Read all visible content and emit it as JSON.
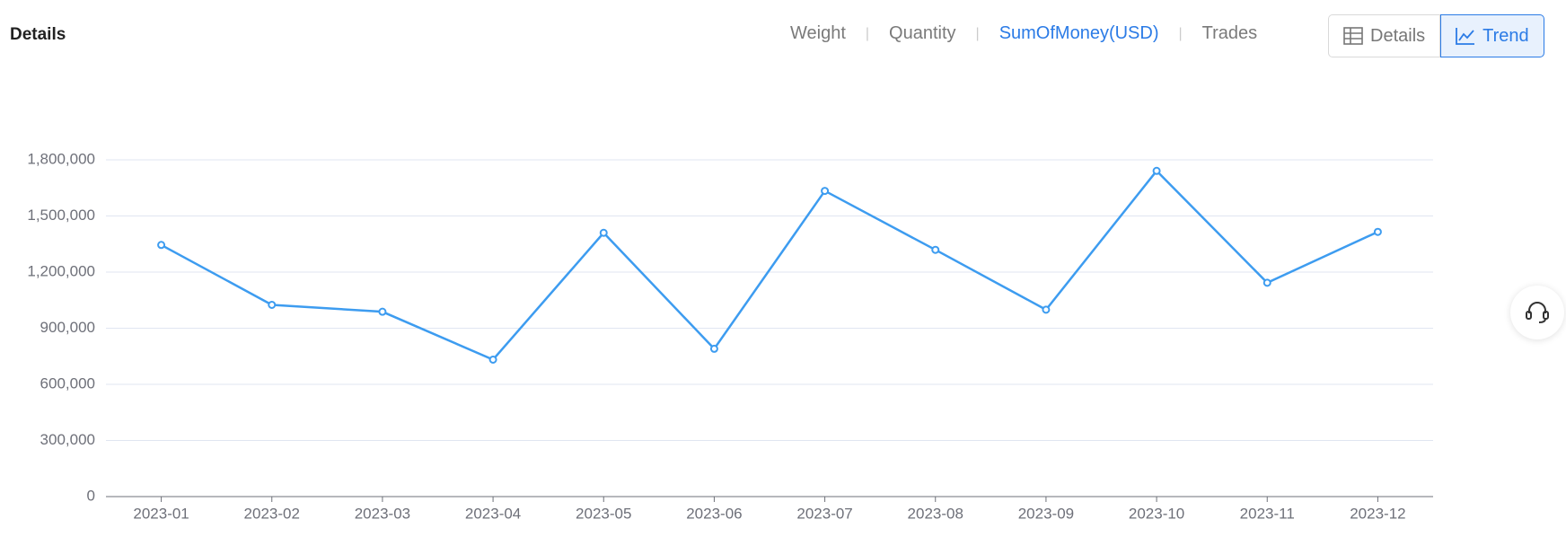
{
  "header": {
    "title": "Details",
    "tabs": [
      "Weight",
      "Quantity",
      "SumOfMoney(USD)",
      "Trades"
    ],
    "buttons": [
      "Details",
      "Trend"
    ]
  },
  "chart_data": {
    "type": "line",
    "categories": [
      "2023-01",
      "2023-02",
      "2023-03",
      "2023-04",
      "2023-05",
      "2023-06",
      "2023-07",
      "2023-08",
      "2023-09",
      "2023-10",
      "2023-11",
      "2023-12"
    ],
    "series": [
      {
        "name": "SumOfMoney(USD)",
        "color": "#3d9cf0",
        "values": [
          1345000,
          1025000,
          988000,
          732000,
          1410000,
          790000,
          1634000,
          1319000,
          999000,
          1741000,
          1143000,
          1415000
        ]
      }
    ],
    "ylim": [
      0,
      1800000
    ],
    "yticks": [
      0,
      {
        "value": 300000,
        "label": "300,000"
      },
      {
        "value": 600000,
        "label": "600,000"
      },
      {
        "value": 900000,
        "label": "900,000"
      },
      {
        "value": 1200000,
        "label": "1,200,000"
      },
      {
        "value": 1500000,
        "label": "1,500,000"
      },
      {
        "value": 1800000,
        "label": "1,800,000"
      }
    ],
    "grid": true
  }
}
